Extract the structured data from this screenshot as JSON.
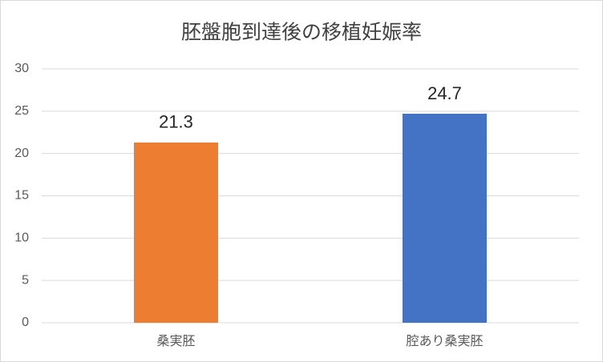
{
  "chart_data": {
    "type": "bar",
    "title": "胚盤胞到達後の移植妊娠率",
    "categories": [
      "桑実胚",
      "腔あり桑実胚"
    ],
    "values": [
      21.3,
      24.7
    ],
    "colors": [
      "#ed7d31",
      "#4472c4"
    ],
    "ylim": [
      0,
      30
    ],
    "yticks": [
      0,
      5,
      10,
      15,
      20,
      25,
      30
    ],
    "grid": true
  }
}
